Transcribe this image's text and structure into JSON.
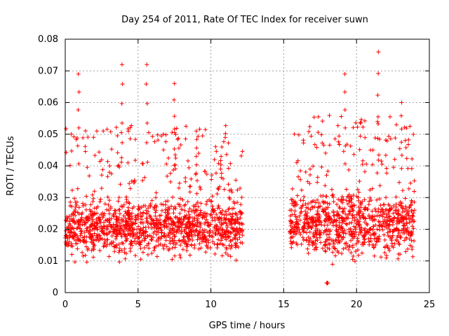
{
  "chart_data": {
    "type": "scatter",
    "title": "Day 254 of 2011, Rate Of TEC Index for receiver suwn",
    "xlabel": "GPS time / hours",
    "ylabel": "ROTI / TECUs",
    "xlim": [
      0,
      25
    ],
    "ylim": [
      0,
      0.08
    ],
    "xticks": [
      0,
      5,
      10,
      15,
      20,
      25
    ],
    "yticks": [
      0,
      0.01,
      0.02,
      0.03,
      0.04,
      0.05,
      0.06,
      0.07,
      0.08
    ],
    "ytick_labels": [
      "0",
      "0.01",
      "0.02",
      "0.03",
      "0.04",
      "0.05",
      "0.06",
      "0.07",
      "0.08"
    ],
    "grid": true,
    "marker": "+",
    "color": "#ff0000",
    "series_segments": [
      {
        "x_start": 0.0,
        "x_end": 12.2,
        "y_typical": [
          0.008,
          0.03
        ],
        "y_max": 0.072
      },
      {
        "x_start": 15.4,
        "x_end": 24.0,
        "y_typical": [
          0.008,
          0.032
        ],
        "y_max": 0.076
      }
    ],
    "notable_points": [
      {
        "x": 0.9,
        "y": 0.069
      },
      {
        "x": 3.9,
        "y": 0.072
      },
      {
        "x": 5.6,
        "y": 0.072
      },
      {
        "x": 7.5,
        "y": 0.066
      },
      {
        "x": 9.0,
        "y": 0.051
      },
      {
        "x": 10.7,
        "y": 0.043
      },
      {
        "x": 19.2,
        "y": 0.069
      },
      {
        "x": 21.5,
        "y": 0.076
      },
      {
        "x": 23.1,
        "y": 0.06
      },
      {
        "x": 18.0,
        "y": 0.003
      }
    ]
  }
}
